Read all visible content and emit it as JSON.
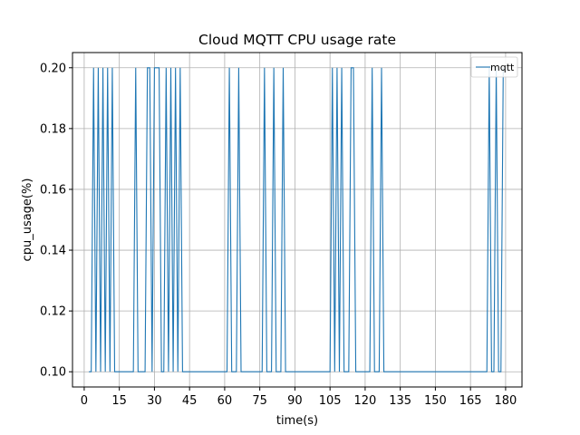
{
  "chart_data": {
    "type": "line",
    "title": "Cloud MQTT CPU usage rate",
    "xlabel": "time(s)",
    "ylabel": "cpu_usage(%)",
    "xlim": [
      -5,
      187
    ],
    "ylim": [
      0.095,
      0.205
    ],
    "xticks": [
      0,
      15,
      30,
      45,
      60,
      75,
      90,
      105,
      120,
      135,
      150,
      165,
      180
    ],
    "yticks": [
      0.1,
      0.12,
      0.14,
      0.16,
      0.18,
      0.2
    ],
    "ytick_labels": [
      "0.10",
      "0.12",
      "0.14",
      "0.16",
      "0.18",
      "0.20"
    ],
    "grid": true,
    "legend_position": "top-right",
    "series": [
      {
        "name": "mqtt",
        "color": "#1f77b4",
        "x": [
          2,
          3,
          4,
          5,
          6,
          7,
          8,
          9,
          10,
          11,
          12,
          13,
          14,
          15,
          16,
          17,
          18,
          19,
          20,
          21,
          22,
          23,
          24,
          25,
          26,
          27,
          28,
          29,
          30,
          31,
          32,
          33,
          34,
          35,
          36,
          37,
          38,
          39,
          40,
          41,
          42,
          43,
          44,
          45,
          46,
          47,
          48,
          49,
          50,
          51,
          52,
          53,
          54,
          55,
          56,
          57,
          58,
          59,
          60,
          61,
          62,
          63,
          64,
          65,
          66,
          67,
          68,
          69,
          70,
          71,
          72,
          73,
          74,
          75,
          76,
          77,
          78,
          79,
          80,
          81,
          82,
          83,
          84,
          85,
          86,
          87,
          88,
          89,
          90,
          91,
          92,
          93,
          94,
          95,
          96,
          97,
          98,
          99,
          100,
          101,
          102,
          103,
          104,
          105,
          106,
          107,
          108,
          109,
          110,
          111,
          112,
          113,
          114,
          115,
          116,
          117,
          118,
          119,
          120,
          121,
          122,
          123,
          124,
          125,
          126,
          127,
          128,
          129,
          130,
          131,
          132,
          133,
          134,
          135,
          136,
          137,
          138,
          139,
          140,
          141,
          142,
          143,
          144,
          145,
          146,
          147,
          148,
          149,
          150,
          151,
          152,
          153,
          154,
          155,
          156,
          157,
          158,
          159,
          160,
          161,
          162,
          163,
          164,
          165,
          166,
          167,
          168,
          169,
          170,
          171,
          172,
          173,
          174,
          175,
          176,
          177,
          178,
          179
        ],
        "y": [
          0.1,
          0.1,
          0.2,
          0.1,
          0.2,
          0.1,
          0.2,
          0.1,
          0.2,
          0.1,
          0.2,
          0.1,
          0.1,
          0.1,
          0.1,
          0.1,
          0.1,
          0.1,
          0.1,
          0.1,
          0.2,
          0.1,
          0.1,
          0.1,
          0.1,
          0.2,
          0.2,
          0.1,
          0.2,
          0.2,
          0.2,
          0.1,
          0.1,
          0.2,
          0.1,
          0.2,
          0.1,
          0.2,
          0.1,
          0.2,
          0.1,
          0.1,
          0.1,
          0.1,
          0.1,
          0.1,
          0.1,
          0.1,
          0.1,
          0.1,
          0.1,
          0.1,
          0.1,
          0.1,
          0.1,
          0.1,
          0.1,
          0.1,
          0.1,
          0.1,
          0.2,
          0.1,
          0.1,
          0.1,
          0.2,
          0.1,
          0.1,
          0.1,
          0.1,
          0.1,
          0.1,
          0.1,
          0.1,
          0.1,
          0.1,
          0.2,
          0.1,
          0.1,
          0.1,
          0.2,
          0.1,
          0.1,
          0.1,
          0.2,
          0.1,
          0.1,
          0.1,
          0.1,
          0.1,
          0.1,
          0.1,
          0.1,
          0.1,
          0.1,
          0.1,
          0.1,
          0.1,
          0.1,
          0.1,
          0.1,
          0.1,
          0.1,
          0.1,
          0.1,
          0.2,
          0.1,
          0.2,
          0.1,
          0.2,
          0.1,
          0.1,
          0.1,
          0.2,
          0.2,
          0.1,
          0.1,
          0.1,
          0.1,
          0.1,
          0.1,
          0.1,
          0.2,
          0.1,
          0.1,
          0.1,
          0.2,
          0.1,
          0.1,
          0.1,
          0.1,
          0.1,
          0.1,
          0.1,
          0.1,
          0.1,
          0.1,
          0.1,
          0.1,
          0.1,
          0.1,
          0.1,
          0.1,
          0.1,
          0.1,
          0.1,
          0.1,
          0.1,
          0.1,
          0.1,
          0.1,
          0.1,
          0.1,
          0.1,
          0.1,
          0.1,
          0.1,
          0.1,
          0.1,
          0.1,
          0.1,
          0.1,
          0.1,
          0.1,
          0.1,
          0.1,
          0.1,
          0.1,
          0.1,
          0.1,
          0.1,
          0.1,
          0.2,
          0.1,
          0.1,
          0.2,
          0.1,
          0.1,
          0.2
        ]
      }
    ]
  }
}
